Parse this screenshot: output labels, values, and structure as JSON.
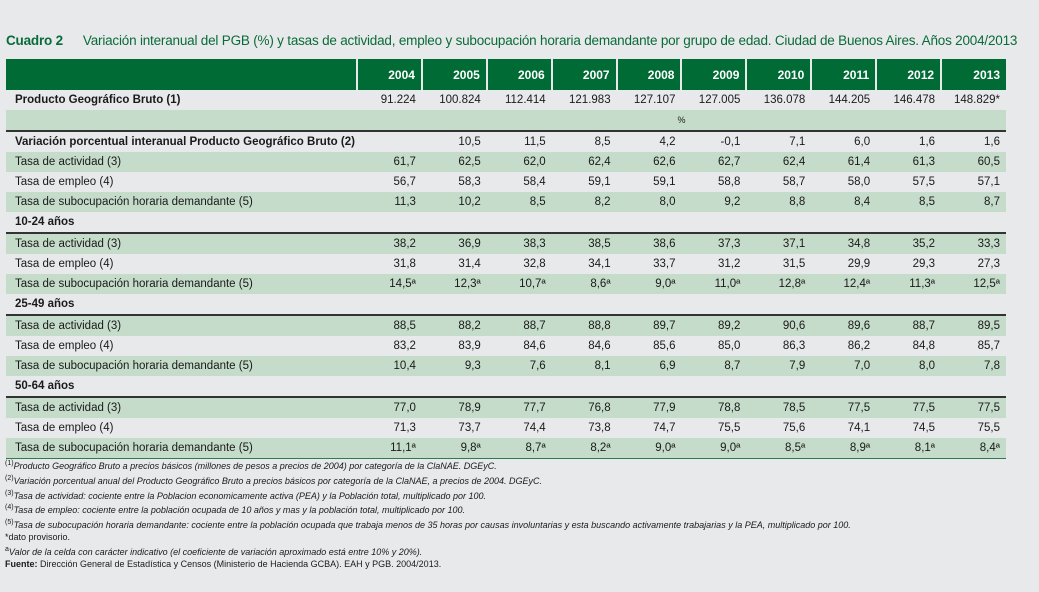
{
  "title": {
    "label": "Cuadro 2",
    "text": "Variación interanual del PGB (%) y tasas de actividad, empleo y subocupación horaria demandante por grupo de edad. Ciudad de Buenos Aires. Años 2004/2013"
  },
  "years": [
    "2004",
    "2005",
    "2006",
    "2007",
    "2008",
    "2009",
    "2010",
    "2011",
    "2012",
    "2013"
  ],
  "rows": [
    {
      "label": "Producto Geográfico Bruto (1)",
      "style": "bold",
      "values": [
        "91.224",
        "100.824",
        "112.414",
        "121.983",
        "127.107",
        "127.005",
        "136.078",
        "144.205",
        "146.478",
        "148.829*"
      ]
    },
    {
      "label": "",
      "style": "g unit",
      "unit": "%",
      "values": []
    },
    {
      "label": "Variación porcentual interanual Producto Geográfico Bruto (2)",
      "style": "bold topline",
      "values": [
        "",
        "10,5",
        "11,5",
        "8,5",
        "4,2",
        "-0,1",
        "7,1",
        "6,0",
        "1,6",
        "1,6"
      ]
    },
    {
      "label": "Tasa de actividad (3)",
      "style": "g",
      "values": [
        "61,7",
        "62,5",
        "62,0",
        "62,4",
        "62,6",
        "62,7",
        "62,4",
        "61,4",
        "61,3",
        "60,5"
      ]
    },
    {
      "label": "Tasa de empleo (4)",
      "style": "",
      "values": [
        "56,7",
        "58,3",
        "58,4",
        "59,1",
        "59,1",
        "58,8",
        "58,7",
        "58,0",
        "57,5",
        "57,1"
      ]
    },
    {
      "label": "Tasa de subocupación horaria demandante (5)",
      "style": "g",
      "values": [
        "11,3",
        "10,2",
        "8,5",
        "8,2",
        "8,0",
        "9,2",
        "8,8",
        "8,4",
        "8,5",
        "8,7"
      ]
    },
    {
      "label": "10-24 años",
      "style": "sec",
      "values": []
    },
    {
      "label": "Tasa de actividad (3)",
      "style": "g topline",
      "values": [
        "38,2",
        "36,9",
        "38,3",
        "38,5",
        "38,6",
        "37,3",
        "37,1",
        "34,8",
        "35,2",
        "33,3"
      ]
    },
    {
      "label": "Tasa de empleo (4)",
      "style": "",
      "values": [
        "31,8",
        "31,4",
        "32,8",
        "34,1",
        "33,7",
        "31,2",
        "31,5",
        "29,9",
        "29,3",
        "27,3"
      ]
    },
    {
      "label": "Tasa de subocupación horaria demandante (5)",
      "style": "g",
      "values": [
        "14,5ª",
        "12,3ª",
        "10,7ª",
        "8,6ª",
        "9,0ª",
        "11,0ª",
        "12,8ª",
        "12,4ª",
        "11,3ª",
        "12,5ª"
      ]
    },
    {
      "label": "25-49 años",
      "style": "sec",
      "values": []
    },
    {
      "label": "Tasa de actividad (3)",
      "style": "g topline",
      "values": [
        "88,5",
        "88,2",
        "88,7",
        "88,8",
        "89,7",
        "89,2",
        "90,6",
        "89,6",
        "88,7",
        "89,5"
      ]
    },
    {
      "label": "Tasa de empleo (4)",
      "style": "",
      "values": [
        "83,2",
        "83,9",
        "84,6",
        "84,6",
        "85,6",
        "85,0",
        "86,3",
        "86,2",
        "84,8",
        "85,7"
      ]
    },
    {
      "label": "Tasa de subocupación horaria demandante (5)",
      "style": "g",
      "values": [
        "10,4",
        "9,3",
        "7,6",
        "8,1",
        "6,9",
        "8,7",
        "7,9",
        "7,0",
        "8,0",
        "7,8"
      ]
    },
    {
      "label": "50-64 años",
      "style": "sec",
      "values": []
    },
    {
      "label": "Tasa de actividad (3)",
      "style": "g topline",
      "values": [
        "77,0",
        "78,9",
        "77,7",
        "76,8",
        "77,9",
        "78,8",
        "78,5",
        "77,5",
        "77,5",
        "77,5"
      ]
    },
    {
      "label": "Tasa de empleo (4)",
      "style": "",
      "values": [
        "71,3",
        "73,7",
        "74,4",
        "73,8",
        "74,7",
        "75,5",
        "75,6",
        "74,1",
        "74,5",
        "75,5"
      ]
    },
    {
      "label": "Tasa de subocupación horaria demandante (5)",
      "style": "g last",
      "values": [
        "11,1ª",
        "9,8ª",
        "8,7ª",
        "8,2ª",
        "9,0ª",
        "9,0ª",
        "8,5ª",
        "8,9ª",
        "8,1ª",
        "8,4ª"
      ]
    }
  ],
  "notes": [
    {
      "mark": "(1)",
      "text": "Producto Geográfico Bruto a precios básicos (millones de pesos a precios de 2004) por categoría de la ClaNAE. DGEyC.",
      "italic": true
    },
    {
      "mark": "(2)",
      "text": "Variación porcentual anual del Producto Geográfico Bruto a precios básicos por categoría de la ClaNAE, a precios de 2004. DGEyC.",
      "italic": true
    },
    {
      "mark": "(3)",
      "text": "Tasa de actividad: cociente entre la Poblacion economicamente activa (PEA) y la Población total, multiplicado por 100.",
      "italic": true
    },
    {
      "mark": "(4)",
      "text": "Tasa de empleo: cociente entre la población ocupada de 10 años y mas y la población total, multiplicado por 100.",
      "italic": true
    },
    {
      "mark": "(5)",
      "text": "Tasa de subocupación horaria demandante: cociente entre la población ocupada que trabaja menos de 35 horas por causas involuntarias y esta buscando activamente trabajarias y la PEA, multiplicado por 100.",
      "italic": true
    },
    {
      "mark": "",
      "text": "*dato provisorio.",
      "italic": false
    },
    {
      "mark": "a",
      "text": "Valor de la celda con carácter indicativo (el coeficiente de variación aproximado está entre 10% y 20%).",
      "italic": true
    }
  ],
  "source": {
    "label": "Fuente:",
    "text": "Dirección General de Estadística y Censos (Ministerio de Hacienda GCBA). EAH y PGB. 2004/2013."
  }
}
